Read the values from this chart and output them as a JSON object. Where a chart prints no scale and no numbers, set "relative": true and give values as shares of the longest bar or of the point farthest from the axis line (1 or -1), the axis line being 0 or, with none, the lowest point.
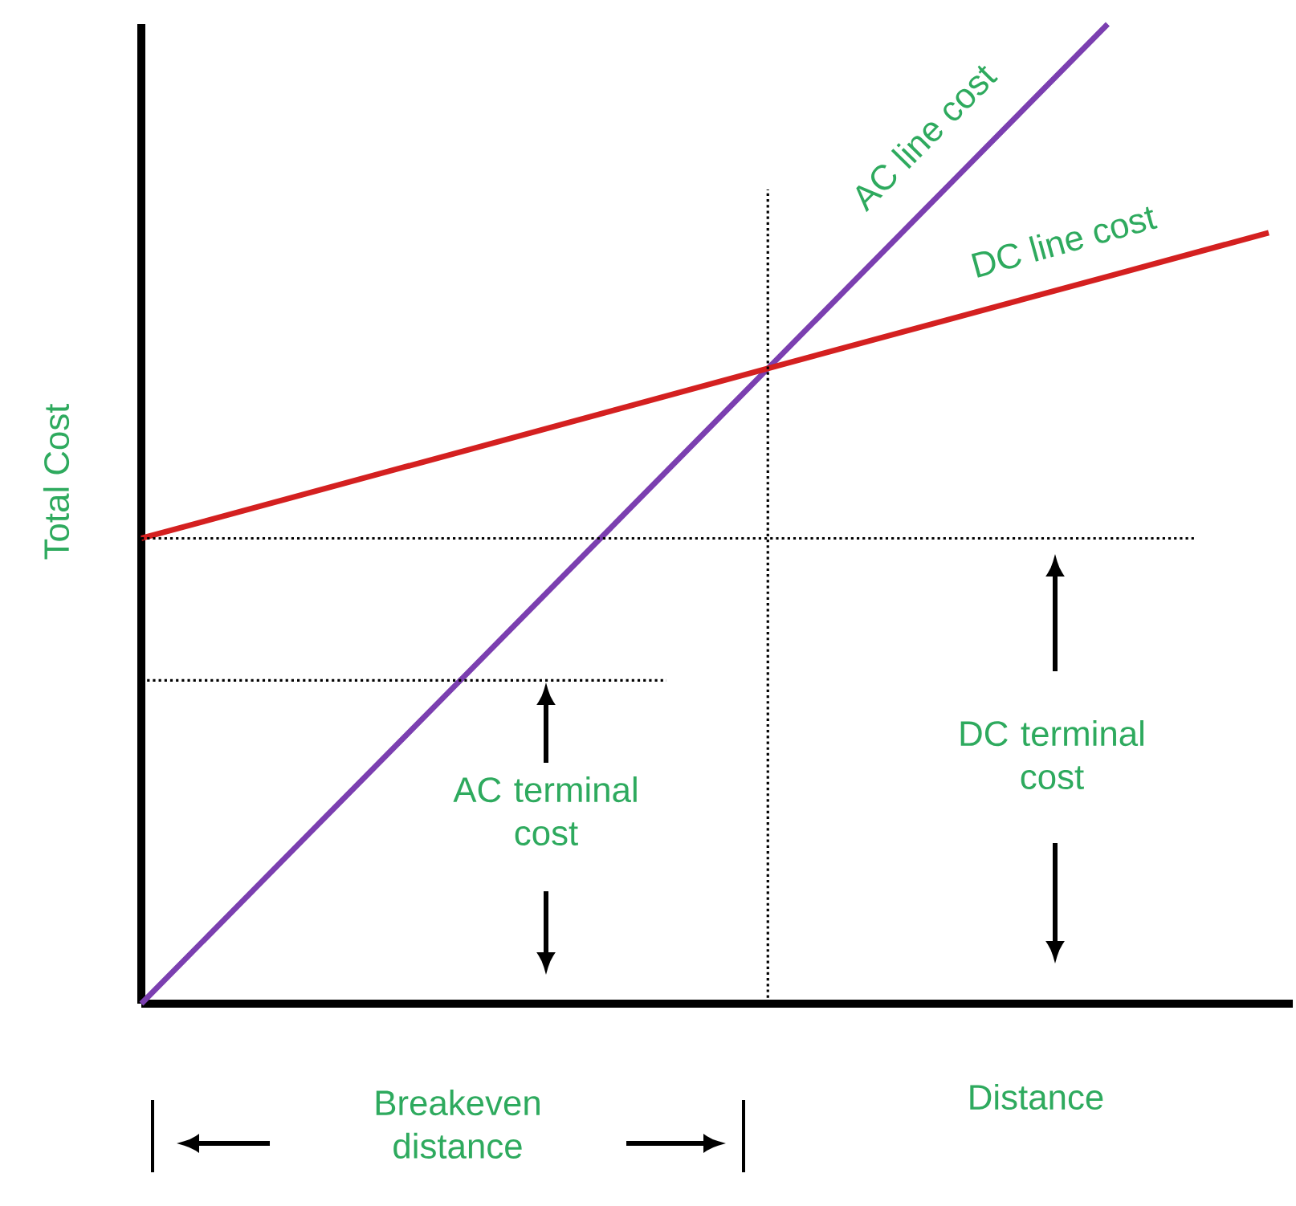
{
  "chart_data": {
    "type": "line",
    "relative": true,
    "xlabel": "Distance",
    "ylabel": "Total Cost",
    "marker": "none",
    "line_style": "solid",
    "categories": [
      null,
      null,
      null,
      null,
      null,
      null,
      null,
      null
    ],
    "series": [
      {
        "name": "AC  line cost",
        "color": "#7b3fb0",
        "values": [
          0,
          0.1667,
          0.3333,
          0.5,
          0.6667,
          0.8333,
          1,
          null
        ]
      },
      {
        "name": "DC line cost",
        "color": "#d42020",
        "values": [
          0.475,
          0.5196,
          0.5641,
          0.6087,
          0.6533,
          0.6979,
          0.7424,
          0.787
        ]
      }
    ],
    "ref_lines": [
      {
        "axis": "y",
        "value": 0.475,
        "color": "#000000",
        "line_style": "dotted"
      },
      {
        "axis": "y",
        "value": 0.33,
        "color": "#000000",
        "line_style": "dotted"
      }
    ],
    "annotations": [
      "AC terminal cost",
      "DC terminal cost",
      "Breakeven distance"
    ]
  }
}
